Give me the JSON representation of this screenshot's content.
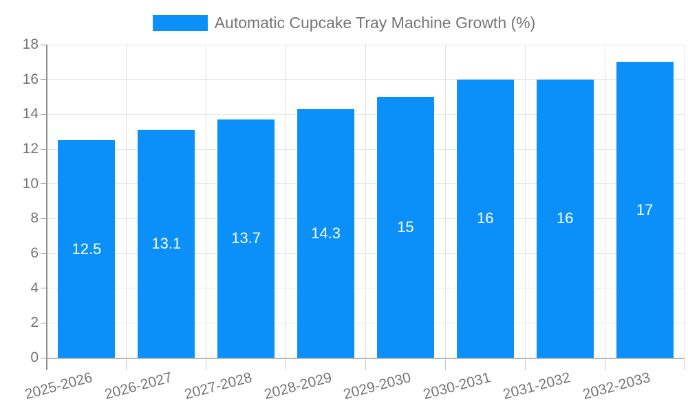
{
  "legend": {
    "label": "Automatic Cupcake Tray Machine Growth (%)"
  },
  "colors": {
    "bar": "#0a90f8",
    "grid": "#e2e2e2",
    "axis_y_line": "#8f8f8f",
    "axis_x_line": "#b5b5b5",
    "tick_y": "#999999",
    "tick_x": "#c6c6c6",
    "axis_text": "#757575",
    "legend_text": "#757575",
    "value_label_text": "#ffffff",
    "background": "#ffffff"
  },
  "chart_data": {
    "type": "bar",
    "title": "Automatic Cupcake Tray Machine Growth (%)",
    "categories": [
      "2025-2026",
      "2026-2027",
      "2027-2028",
      "2028-2029",
      "2029-2030",
      "2030-2031",
      "2031-2032",
      "2032-2033"
    ],
    "values": [
      12.5,
      13.1,
      13.7,
      14.3,
      15,
      16,
      16,
      17
    ],
    "value_labels": [
      "12.5",
      "13.1",
      "13.7",
      "14.3",
      "15",
      "16",
      "16",
      "17"
    ],
    "xlabel": "",
    "ylabel": "",
    "ylim": [
      0,
      18
    ],
    "ytick_step": 2,
    "ytick_labels": [
      "0",
      "2",
      "4",
      "6",
      "8",
      "10",
      "12",
      "14",
      "16",
      "18"
    ],
    "grid": true,
    "legend_position": "top-center",
    "value_label_position": "inside-center",
    "xlabel_rotation_deg": -15
  }
}
